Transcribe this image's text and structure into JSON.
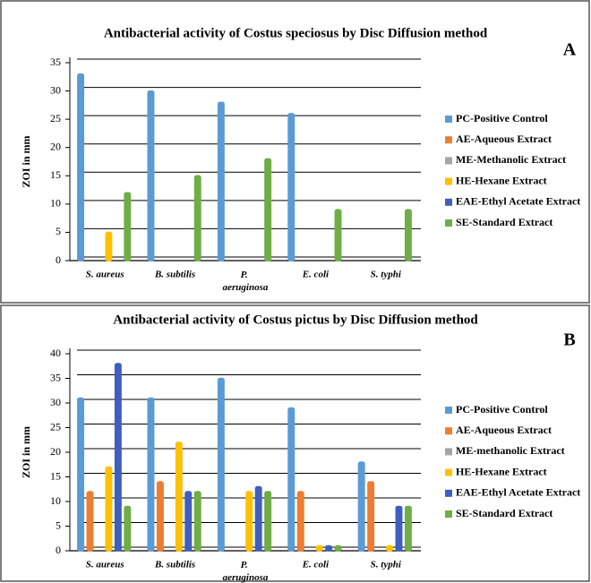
{
  "chart_data": [
    {
      "type": "bar",
      "title": "Antibacterial activity of Costus speciosus by Disc Diffusion method",
      "panel_label": "A",
      "y_label": "ZOI in mm",
      "categories": [
        "S. aureus",
        "B. subtilis",
        "P. aeruginosa",
        "E. coli",
        "S. typhi"
      ],
      "series": [
        {
          "name": "PC-Positive Control",
          "color": "#5b9bd5",
          "values": [
            33,
            30,
            28,
            26,
            0
          ]
        },
        {
          "name": "AE-Aqueous Extract",
          "color": "#ed7d31",
          "values": [
            0,
            0,
            0,
            0,
            0
          ]
        },
        {
          "name": "ME-Methanolic Extract",
          "color": "#a5a5a5",
          "values": [
            0,
            0,
            0,
            0,
            0
          ]
        },
        {
          "name": "HE-Hexane Extract",
          "color": "#ffc000",
          "values": [
            5,
            0,
            0,
            0,
            0
          ]
        },
        {
          "name": "EAE-Ethyl Acetate Extract",
          "color": "#3f5fbf",
          "values": [
            0,
            0,
            0,
            0,
            0
          ]
        },
        {
          "name": "SE-Standard Extract",
          "color": "#70ad47",
          "values": [
            12,
            15,
            18,
            9,
            9
          ]
        }
      ],
      "ylim": [
        0,
        35
      ],
      "yticks": [
        0,
        5,
        10,
        15,
        20,
        25,
        30,
        35
      ],
      "grid": true,
      "legend": "right"
    },
    {
      "type": "bar",
      "title": "Antibacterial activity of Costus pictus by Disc Diffusion method",
      "panel_label": "B",
      "y_label": "ZOI in mm",
      "categories": [
        "S. aureus",
        "B. subtilis",
        "P. aeruginosa",
        "E. coli",
        "S. typhi"
      ],
      "series": [
        {
          "name": "PC-Positive Control",
          "color": "#5b9bd5",
          "values": [
            31,
            31,
            35,
            29,
            18
          ]
        },
        {
          "name": "AE-Aqueous Extract",
          "color": "#ed7d31",
          "values": [
            12,
            14,
            0,
            12,
            14
          ]
        },
        {
          "name": "ME-methanolic Extract",
          "color": "#a5a5a5",
          "values": [
            0,
            0,
            0,
            0,
            0
          ]
        },
        {
          "name": "HE-Hexane Extract",
          "color": "#ffc000",
          "values": [
            17,
            22,
            12,
            1,
            1
          ]
        },
        {
          "name": "EAE-Ethyl Acetate Extract",
          "color": "#3f5fbf",
          "values": [
            38,
            12,
            13,
            1,
            9
          ]
        },
        {
          "name": "SE-Standard Extract",
          "color": "#70ad47",
          "values": [
            9,
            12,
            12,
            1,
            9
          ]
        }
      ],
      "ylim": [
        0,
        40
      ],
      "yticks": [
        0,
        5,
        10,
        15,
        20,
        25,
        30,
        35,
        40
      ],
      "grid": true,
      "legend": "right"
    }
  ]
}
